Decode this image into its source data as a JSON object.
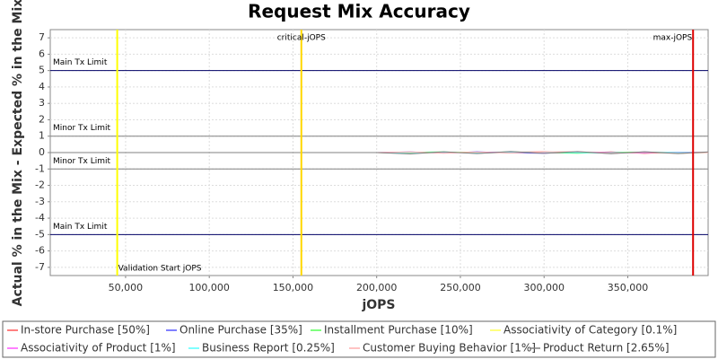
{
  "chart_data": {
    "type": "line",
    "title": "Request Mix Accuracy",
    "x_label": "jOPS",
    "y_label": "Actual % in the Mix - Expected % in the Mix",
    "xlim": [
      5000,
      398000
    ],
    "ylim": [
      -7.5,
      7.5
    ],
    "xticks": [
      {
        "value": 50000,
        "label": "50,000"
      },
      {
        "value": 100000,
        "label": "100,000"
      },
      {
        "value": 150000,
        "label": "150,000"
      },
      {
        "value": 200000,
        "label": "200,000"
      },
      {
        "value": 250000,
        "label": "250,000"
      },
      {
        "value": 300000,
        "label": "300,000"
      },
      {
        "value": 350000,
        "label": "350,000"
      }
    ],
    "yticks": [
      -7,
      -6,
      -5,
      -4,
      -3,
      -2,
      -1,
      0,
      1,
      2,
      3,
      4,
      5,
      6,
      7
    ],
    "grid": true,
    "limits": [
      {
        "label": "Main Tx Limit",
        "value": 5,
        "color": "#000066"
      },
      {
        "label": "Minor Tx Limit",
        "value": 1,
        "color": "#808080"
      },
      {
        "label": "Minor Tx Limit",
        "value": -1,
        "color": "#808080"
      },
      {
        "label": "Main Tx Limit",
        "value": -5,
        "color": "#000066"
      }
    ],
    "markers": [
      {
        "label": "Validation Start jOPS",
        "value": 45000,
        "color": "#ffff00"
      },
      {
        "label": "critical-jOPS",
        "value": 155000,
        "color": "#ffd700"
      },
      {
        "label": "max-jOPS",
        "value": 389000,
        "color": "#dd0000"
      }
    ],
    "x": [
      5000,
      100000,
      200000,
      220000,
      240000,
      260000,
      280000,
      300000,
      320000,
      340000,
      360000,
      380000,
      398000
    ],
    "series": [
      {
        "name": "In-store Purchase [50%]",
        "color": "#ff5555",
        "values": [
          0,
          0,
          0,
          -0.05,
          0.03,
          -0.04,
          0.02,
          0.05,
          -0.03,
          0.04,
          -0.05,
          0.03,
          0
        ]
      },
      {
        "name": "Online Purchase [35%]",
        "color": "#5555ff",
        "values": [
          0,
          0,
          0,
          0.04,
          -0.03,
          0.05,
          -0.02,
          -0.04,
          0.03,
          -0.05,
          0.04,
          -0.02,
          0
        ]
      },
      {
        "name": "Installment Purchase [10%]",
        "color": "#55ff55",
        "values": [
          0,
          0,
          0,
          0.02,
          0.04,
          -0.03,
          0.05,
          -0.02,
          -0.04,
          0.02,
          0.03,
          -0.04,
          0
        ]
      },
      {
        "name": "Associativity of Category [0.1%]",
        "color": "#ffff55",
        "values": [
          0,
          0,
          0,
          -0.02,
          0.01,
          0.02,
          -0.01,
          0.01,
          0.02,
          -0.01,
          0.01,
          0.02,
          0
        ]
      },
      {
        "name": "Associativity of Product [1%]",
        "color": "#ff55ff",
        "values": [
          0,
          0,
          0,
          0.03,
          -0.02,
          0.01,
          0.03,
          -0.03,
          0.02,
          0.01,
          -0.02,
          0.03,
          0
        ]
      },
      {
        "name": "Business Report [0.25%]",
        "color": "#55ffff",
        "values": [
          0,
          0,
          0,
          -0.01,
          0.02,
          -0.02,
          0.01,
          0.02,
          -0.01,
          -0.02,
          0.02,
          0.01,
          0
        ]
      },
      {
        "name": "Customer Buying Behavior [1%]",
        "color": "#ffafaf",
        "values": [
          0,
          0,
          0,
          0.04,
          -0.04,
          0.03,
          -0.03,
          0.04,
          0.05,
          -0.04,
          0.03,
          -0.05,
          0
        ]
      },
      {
        "name": "Product Return [2.65%]",
        "color": "#808080",
        "values": [
          0,
          0,
          0,
          -0.08,
          0.05,
          -0.06,
          0.07,
          -0.05,
          0.06,
          -0.07,
          0.05,
          -0.06,
          0.04
        ]
      }
    ]
  }
}
